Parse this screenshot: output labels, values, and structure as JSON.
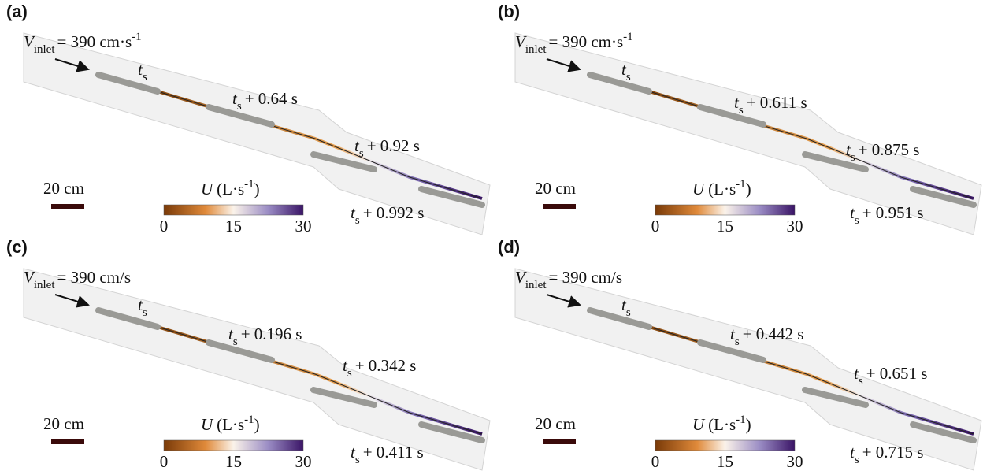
{
  "panels": [
    {
      "label": "(a)",
      "inlet": {
        "symbol": "V",
        "subscript": "inlet",
        "value": "= 390 cm·s",
        "superscript": "-1"
      },
      "times": [
        {
          "symbol": "t",
          "subscript": "s"
        },
        {
          "symbol": "t",
          "subscript": "s",
          "offset": "+ 0.64 s"
        },
        {
          "symbol": "t",
          "subscript": "s",
          "offset": "+ 0.92 s"
        },
        {
          "symbol": "t",
          "subscript": "s",
          "offset": "+ 0.992 s"
        }
      ],
      "scale": "20 cm",
      "colorbar": {
        "symbol": "U",
        "unit": "(L·s",
        "superscript": "-1",
        "close": ")",
        "ticks": [
          0,
          15,
          30
        ]
      }
    },
    {
      "label": "(b)",
      "inlet": {
        "symbol": "V",
        "subscript": "inlet",
        "value": "= 390 cm·s",
        "superscript": "-1"
      },
      "times": [
        {
          "symbol": "t",
          "subscript": "s"
        },
        {
          "symbol": "t",
          "subscript": "s",
          "offset": "+ 0.611 s"
        },
        {
          "symbol": "t",
          "subscript": "s",
          "offset": "+ 0.875 s"
        },
        {
          "symbol": "t",
          "subscript": "s",
          "offset": "+ 0.951 s"
        }
      ],
      "scale": "20 cm",
      "colorbar": {
        "symbol": "U",
        "unit": "(L·s",
        "superscript": "-1",
        "close": ")",
        "ticks": [
          0,
          15,
          30
        ]
      }
    },
    {
      "label": "(c)",
      "inlet": {
        "symbol": "V",
        "subscript": "inlet",
        "value": "= 390 cm/s"
      },
      "times": [
        {
          "symbol": "t",
          "subscript": "s"
        },
        {
          "symbol": "t",
          "subscript": "s",
          "offset": "+ 0.196 s"
        },
        {
          "symbol": "t",
          "subscript": "s",
          "offset": "+ 0.342 s"
        },
        {
          "symbol": "t",
          "subscript": "s",
          "offset": "+ 0.411 s"
        }
      ],
      "scale": "20 cm",
      "colorbar": {
        "symbol": "U",
        "unit": "(L·s",
        "superscript": "-1",
        "close": ")",
        "ticks": [
          0,
          15,
          30
        ]
      }
    },
    {
      "label": "(d)",
      "inlet": {
        "symbol": "V",
        "subscript": "inlet",
        "value": "= 390 cm/s"
      },
      "times": [
        {
          "symbol": "t",
          "subscript": "s"
        },
        {
          "symbol": "t",
          "subscript": "s",
          "offset": "+ 0.442 s"
        },
        {
          "symbol": "t",
          "subscript": "s",
          "offset": "+ 0.651 s"
        },
        {
          "symbol": "t",
          "subscript": "s",
          "offset": "+ 0.715 s"
        }
      ],
      "scale": "20 cm",
      "colorbar": {
        "symbol": "U",
        "unit": "(L·s",
        "superscript": "-1",
        "close": ")",
        "ticks": [
          0,
          15,
          30
        ]
      }
    }
  ]
}
